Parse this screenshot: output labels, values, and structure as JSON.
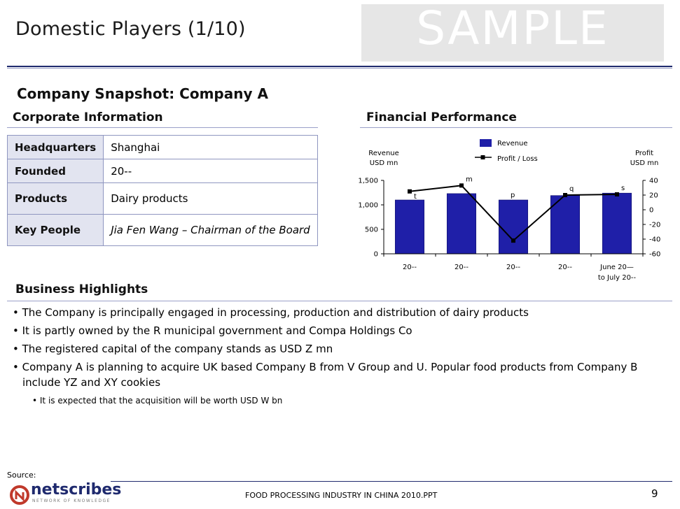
{
  "header": {
    "title": "Domestic Players (1/10)",
    "watermark": "SAMPLE"
  },
  "snapshot_title": "Company Snapshot: Company A",
  "corporate": {
    "heading": "Corporate Information",
    "rows": [
      {
        "label": "Headquarters",
        "value": "Shanghai"
      },
      {
        "label": "Founded",
        "value": "20--"
      },
      {
        "label": "Products",
        "value": "Dairy products"
      },
      {
        "label": "Key People",
        "value": "Jia Fen Wang – Chairman of the Board"
      }
    ]
  },
  "financial": {
    "heading": "Financial Performance"
  },
  "chart_data": {
    "type": "bar",
    "categories": [
      "20--",
      "20--",
      "20--",
      "20--",
      "June 20—\nto July 20--"
    ],
    "series": [
      {
        "name": "Revenue",
        "type": "bar",
        "axis": "left",
        "values": [
          1100,
          1230,
          1100,
          1190,
          1240
        ]
      },
      {
        "name": "Profit / Loss",
        "type": "line",
        "axis": "right",
        "values": [
          25,
          33,
          -42,
          20,
          21
        ]
      }
    ],
    "point_labels": [
      "t",
      "m",
      "p",
      "q",
      "s"
    ],
    "y_left": {
      "label_lines": [
        "Revenue",
        "USD mn"
      ],
      "range": [
        0,
        1500
      ],
      "ticks": [
        "0",
        "500",
        "1,000",
        "1,500"
      ]
    },
    "y_right": {
      "label_lines": [
        "Profit",
        "USD mn"
      ],
      "range": [
        -60,
        40
      ],
      "ticks": [
        "-60",
        "-40",
        "-20",
        "0",
        "20",
        "40"
      ]
    },
    "legend_position": "top-center",
    "colors": {
      "bar": "#1f1fa8",
      "line": "#000000"
    }
  },
  "business": {
    "heading": "Business Highlights",
    "bullets": [
      "• The Company is principally engaged in processing, production and distribution of dairy products",
      "• It is partly owned by the R municipal government and Compa Holdings Co",
      "• The registered capital of the company stands as USD Z mn",
      "• Company A is planning to acquire UK based Company B from V Group and U. Popular food products from Company B include YZ and XY cookies"
    ],
    "sub_bullet": "• It is expected that the acquisition will be worth USD W bn"
  },
  "footer": {
    "source": "Source:",
    "logo": "netscribes",
    "logo_tagline": "NETWORK OF KNOWLEDGE",
    "document": "FOOD PROCESSING INDUSTRY IN CHINA 2010.PPT",
    "page": "9"
  }
}
